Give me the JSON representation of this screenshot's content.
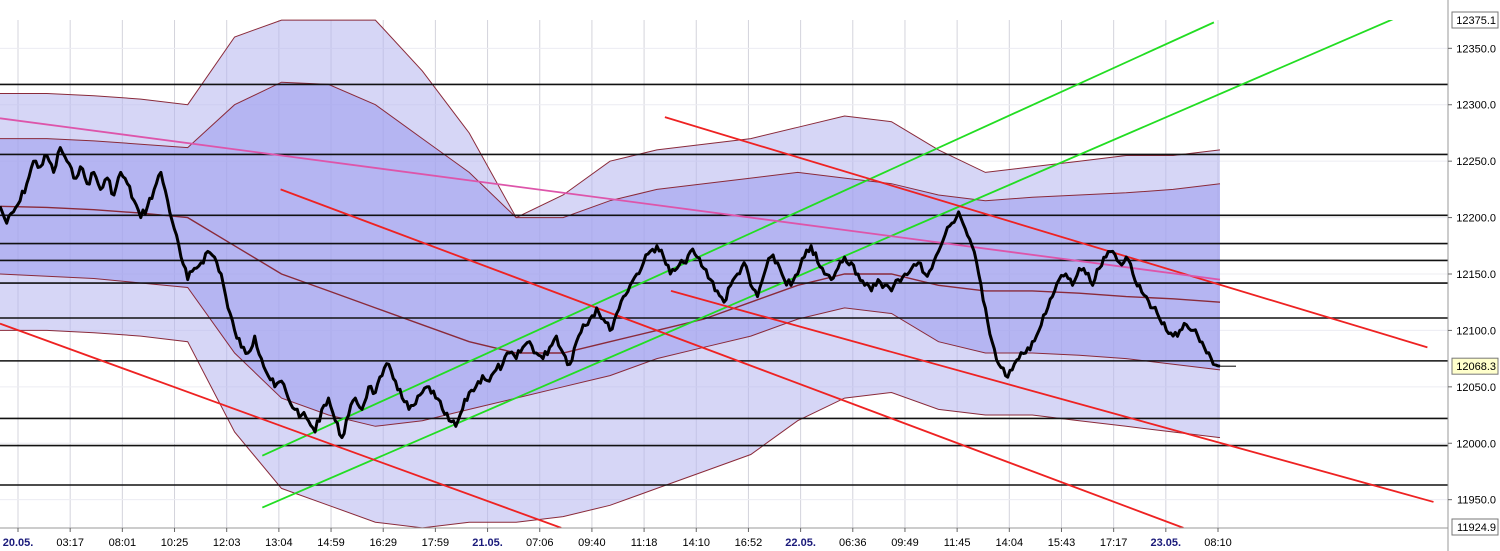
{
  "chart_data": {
    "type": "line",
    "title": "",
    "xlabel": "",
    "ylabel": "",
    "ylim": [
      11924.9,
      12375.1
    ],
    "grid": true,
    "y_axis_top_label": "12375.1",
    "y_axis_bottom_label": "11924.9",
    "y_ticks": [
      "12350.0",
      "12300.0",
      "12250.0",
      "12200.0",
      "12150.0",
      "12100.0",
      "12050.0",
      "12000.0",
      "11950.0"
    ],
    "x_ticks": [
      {
        "label": "20.05.",
        "is_date": true
      },
      {
        "label": "03:17",
        "is_date": false
      },
      {
        "label": "08:01",
        "is_date": false
      },
      {
        "label": "10:25",
        "is_date": false
      },
      {
        "label": "12:03",
        "is_date": false
      },
      {
        "label": "13:04",
        "is_date": false
      },
      {
        "label": "14:59",
        "is_date": false
      },
      {
        "label": "16:29",
        "is_date": false
      },
      {
        "label": "17:59",
        "is_date": false
      },
      {
        "label": "21.05.",
        "is_date": true
      },
      {
        "label": "07:06",
        "is_date": false
      },
      {
        "label": "09:40",
        "is_date": false
      },
      {
        "label": "11:18",
        "is_date": false
      },
      {
        "label": "14:10",
        "is_date": false
      },
      {
        "label": "16:52",
        "is_date": false
      },
      {
        "label": "22.05.",
        "is_date": true
      },
      {
        "label": "06:36",
        "is_date": false
      },
      {
        "label": "09:49",
        "is_date": false
      },
      {
        "label": "11:45",
        "is_date": false
      },
      {
        "label": "14:04",
        "is_date": false
      },
      {
        "label": "15:43",
        "is_date": false
      },
      {
        "label": "17:17",
        "is_date": false
      },
      {
        "label": "23.05.",
        "is_date": true
      },
      {
        "label": "08:10",
        "is_date": false
      }
    ],
    "last_price_label": "12068.3",
    "last_price": 12068.3,
    "horizontal_levels": [
      12318,
      12256,
      12202,
      12177,
      12162,
      12142,
      12111,
      12073,
      12022,
      11998,
      11963
    ],
    "series": [
      {
        "values": [
          12210,
          12195,
          12205,
          12215,
          12230,
          12250,
          12245,
          12255,
          12240,
          12262,
          12250,
          12235,
          12245,
          12230,
          12240,
          12225,
          12235,
          12220,
          12240,
          12230,
          12215,
          12200,
          12210,
          12225,
          12240,
          12215,
          12190,
          12165,
          12145,
          12155,
          12160,
          12170,
          12165,
          12150,
          12120,
          12100,
          12085,
          12080,
          12095,
          12075,
          12060,
          12050,
          12055,
          12040,
          12030,
          12025,
          12020,
          12010,
          12030,
          12040,
          12020,
          12005,
          12025,
          12040,
          12030,
          12050,
          12045,
          12060,
          12070,
          12055,
          12040,
          12030,
          12035,
          12045,
          12050,
          12040,
          12030,
          12020,
          12015,
          12030,
          12045,
          12050,
          12060,
          12055,
          12065,
          12070,
          12080,
          12075,
          12085,
          12090,
          12080,
          12075,
          12085,
          12095,
          12080,
          12070,
          12090,
          12105,
          12110,
          12120,
          12110,
          12100,
          12115,
          12130,
          12140,
          12150,
          12160,
          12170,
          12175,
          12165,
          12150,
          12155,
          12160,
          12170,
          12165,
          12155,
          12145,
          12135,
          12125,
          12140,
          12150,
          12160,
          12140,
          12130,
          12150,
          12165,
          12160,
          12145,
          12140,
          12150,
          12165,
          12175,
          12160,
          12150,
          12145,
          12155,
          12165,
          12160,
          12150,
          12140,
          12135,
          12145,
          12140,
          12135,
          12145,
          12150,
          12155,
          12160,
          12150,
          12155,
          12170,
          12185,
          12195,
          12205,
          12190,
          12175,
          12150,
          12120,
          12090,
          12070,
          12060,
          12065,
          12075,
          12080,
          12090,
          12100,
          12115,
          12130,
          12145,
          12150,
          12140,
          12155,
          12150,
          12140,
          12155,
          12165,
          12170,
          12160,
          12165,
          12150,
          12140,
          12130,
          12120,
          12110,
          12100,
          12095,
          12100,
          12105,
          12100,
          12090,
          12080,
          12070,
          12068.3
        ]
      }
    ],
    "trend_lines": [
      {
        "color": "#22dd22",
        "points": [
          [
            0.215,
            11989
          ],
          [
            0.995,
            12373
          ]
        ]
      },
      {
        "color": "#22dd22",
        "points": [
          [
            0.215,
            11943
          ],
          [
            1.2,
            12403
          ]
        ]
      },
      {
        "color": "#ee2222",
        "points": [
          [
            0.545,
            12289
          ],
          [
            1.17,
            12085
          ]
        ]
      },
      {
        "color": "#dd55aa",
        "points": [
          [
            0.0,
            12288
          ],
          [
            1.0,
            12145
          ]
        ]
      },
      {
        "color": "#ee2222",
        "points": [
          [
            0.0,
            12106
          ],
          [
            0.46,
            11925
          ]
        ]
      },
      {
        "color": "#ee2222",
        "points": [
          [
            0.23,
            12225
          ],
          [
            0.97,
            11925
          ]
        ]
      },
      {
        "color": "#ee2222",
        "points": [
          [
            0.55,
            12135
          ],
          [
            1.175,
            11948
          ]
        ]
      }
    ],
    "band_profile": {
      "outer_upper": [
        12310,
        12310,
        12308,
        12305,
        12300,
        12360,
        12375,
        12375,
        12375,
        12330,
        12275,
        12200,
        12220,
        12250,
        12260,
        12265,
        12270,
        12280,
        12290,
        12285,
        12260,
        12240,
        12245,
        12250,
        12255,
        12255,
        12260
      ],
      "outer_lower": [
        12100,
        12100,
        12098,
        12095,
        12090,
        12010,
        11960,
        11945,
        11930,
        11925,
        11930,
        11930,
        11935,
        11945,
        11960,
        11975,
        11990,
        12020,
        12040,
        12045,
        12030,
        12025,
        12025,
        12020,
        12015,
        12010,
        12005
      ],
      "inner_upper": [
        12270,
        12270,
        12268,
        12265,
        12262,
        12300,
        12320,
        12318,
        12300,
        12270,
        12240,
        12200,
        12200,
        12215,
        12225,
        12230,
        12235,
        12240,
        12235,
        12230,
        12220,
        12215,
        12218,
        12220,
        12222,
        12225,
        12230
      ],
      "inner_lower": [
        12150,
        12148,
        12146,
        12142,
        12138,
        12080,
        12040,
        12025,
        12015,
        12020,
        12030,
        12040,
        12050,
        12060,
        12075,
        12085,
        12095,
        12110,
        12120,
        12115,
        12090,
        12080,
        12080,
        12078,
        12075,
        12070,
        12065
      ],
      "mid": [
        12210,
        12209,
        12207,
        12204,
        12200,
        12175,
        12150,
        12135,
        12120,
        12105,
        12090,
        12080,
        12080,
        12090,
        12100,
        12110,
        12125,
        12140,
        12150,
        12150,
        12140,
        12135,
        12135,
        12133,
        12130,
        12128,
        12125
      ]
    }
  }
}
